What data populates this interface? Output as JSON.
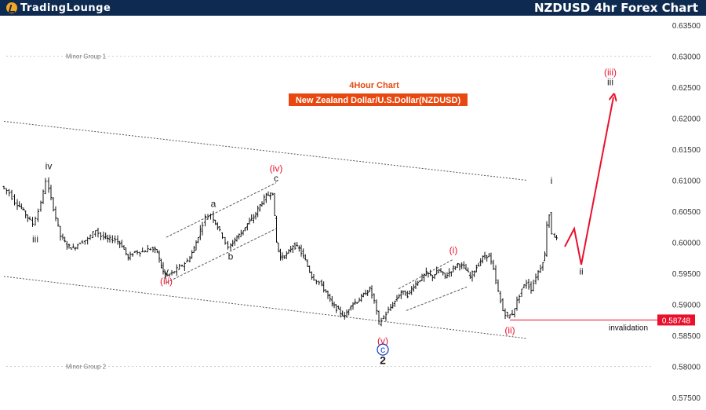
{
  "header": {
    "logo_text": "TradingLounge",
    "logo_icon": "trading-lounge-logo-icon",
    "title": "NZDUSD 4hr Forex Chart"
  },
  "colors": {
    "header_bg": "#0f2a50",
    "logo_accent": "#f5a623",
    "wave_red": "#e8112d",
    "wave_black": "#1a1a1a",
    "wave_blue": "#1e3fc7",
    "label_bg": "#e8480f",
    "candles": "#111111",
    "channel": "#777777"
  },
  "chart_data": {
    "type": "candlestick",
    "title": "4Hour Chart",
    "subtitle": "New Zealand Dollar/U.S.Dollar(NZDUSD)",
    "ylim": [
      0.5745,
      0.6365
    ],
    "yticks": [
      "0.57500",
      "0.58000",
      "0.58500",
      "0.59000",
      "0.59500",
      "0.60000",
      "0.60500",
      "0.61000",
      "0.61500",
      "0.62000",
      "0.62500",
      "0.63000",
      "0.63500"
    ],
    "grid": false,
    "group_labels": [
      {
        "text": "Minor Group 1",
        "y": 0.63
      },
      {
        "text": "Minor Group 2",
        "y": 0.58
      }
    ],
    "invalidation": {
      "label": "invalidation",
      "value": "0.58748",
      "y": 0.58748
    },
    "wave_labels": [
      {
        "text": "iv",
        "x": 62,
        "y": 0.6118,
        "color": "black"
      },
      {
        "text": "iii",
        "x": 45,
        "y": 0.6,
        "color": "black"
      },
      {
        "text": "(iv)",
        "x": 352,
        "y": 0.6114,
        "color": "red"
      },
      {
        "text": "c",
        "x": 352,
        "y": 0.6098,
        "color": "black"
      },
      {
        "text": "a",
        "x": 272,
        "y": 0.6057,
        "color": "black"
      },
      {
        "text": "b",
        "x": 294,
        "y": 0.5972,
        "color": "black"
      },
      {
        "text": "v",
        "x": 212,
        "y": 0.5948,
        "color": "black"
      },
      {
        "text": "(iii)",
        "x": 212,
        "y": 0.5932,
        "color": "red"
      },
      {
        "text": "(i)",
        "x": 578,
        "y": 0.5982,
        "color": "red"
      },
      {
        "text": "i",
        "x": 703,
        "y": 0.6094,
        "color": "black"
      },
      {
        "text": "ii",
        "x": 741,
        "y": 0.5948,
        "color": "black"
      },
      {
        "text": "(ii)",
        "x": 650,
        "y": 0.5853,
        "color": "red"
      },
      {
        "text": "(v)",
        "x": 488,
        "y": 0.5836,
        "color": "red"
      },
      {
        "text": "c",
        "x": 488,
        "y": 0.5822,
        "color": "blue"
      },
      {
        "text": "2",
        "x": 488,
        "y": 0.5804,
        "color": "black"
      },
      {
        "text": "(iii)",
        "x": 778,
        "y": 0.6269,
        "color": "red"
      },
      {
        "text": "iii",
        "x": 778,
        "y": 0.6253,
        "color": "black"
      }
    ],
    "projection": [
      [
        720,
        0.5993
      ],
      [
        732,
        0.6022
      ],
      [
        741,
        0.5964
      ],
      [
        782,
        0.6234
      ]
    ],
    "channels": [
      {
        "from": [
          5,
          0.6195
        ],
        "to": [
          672,
          0.61
        ]
      },
      {
        "from": [
          5,
          0.5945
        ],
        "to": [
          672,
          0.5845
        ]
      },
      {
        "from": [
          212,
          0.6008
        ],
        "to": [
          352,
          0.6096
        ]
      },
      {
        "from": [
          212,
          0.5935
        ],
        "to": [
          352,
          0.6022
        ]
      },
      {
        "from": [
          508,
          0.5925
        ],
        "to": [
          577,
          0.5972
        ]
      },
      {
        "from": [
          518,
          0.589
        ],
        "to": [
          595,
          0.5928
        ]
      }
    ],
    "price_path": [
      [
        5,
        0.609
      ],
      [
        15,
        0.608
      ],
      [
        22,
        0.6065
      ],
      [
        30,
        0.6055
      ],
      [
        38,
        0.604
      ],
      [
        45,
        0.603
      ],
      [
        52,
        0.605
      ],
      [
        58,
        0.608
      ],
      [
        62,
        0.61
      ],
      [
        68,
        0.607
      ],
      [
        74,
        0.604
      ],
      [
        80,
        0.601
      ],
      [
        88,
        0.5995
      ],
      [
        96,
        0.599
      ],
      [
        105,
        0.6
      ],
      [
        115,
        0.6005
      ],
      [
        125,
        0.602
      ],
      [
        132,
        0.601
      ],
      [
        140,
        0.6005
      ],
      [
        150,
        0.6005
      ],
      [
        158,
        0.5995
      ],
      [
        166,
        0.5975
      ],
      [
        175,
        0.5985
      ],
      [
        185,
        0.5985
      ],
      [
        195,
        0.599
      ],
      [
        203,
        0.5985
      ],
      [
        208,
        0.596
      ],
      [
        213,
        0.5945
      ],
      [
        222,
        0.595
      ],
      [
        232,
        0.596
      ],
      [
        242,
        0.597
      ],
      [
        250,
        0.599
      ],
      [
        258,
        0.602
      ],
      [
        265,
        0.604
      ],
      [
        272,
        0.6045
      ],
      [
        280,
        0.6025
      ],
      [
        287,
        0.601
      ],
      [
        294,
        0.599
      ],
      [
        302,
        0.6005
      ],
      [
        310,
        0.6015
      ],
      [
        318,
        0.603
      ],
      [
        326,
        0.604
      ],
      [
        334,
        0.606
      ],
      [
        342,
        0.6075
      ],
      [
        350,
        0.608
      ],
      [
        355,
        0.6
      ],
      [
        360,
        0.5975
      ],
      [
        368,
        0.598
      ],
      [
        376,
        0.5995
      ],
      [
        384,
        0.599
      ],
      [
        392,
        0.597
      ],
      [
        400,
        0.5945
      ],
      [
        410,
        0.5935
      ],
      [
        418,
        0.592
      ],
      [
        426,
        0.59
      ],
      [
        434,
        0.589
      ],
      [
        442,
        0.588
      ],
      [
        450,
        0.59
      ],
      [
        458,
        0.5905
      ],
      [
        466,
        0.5915
      ],
      [
        474,
        0.5925
      ],
      [
        480,
        0.5905
      ],
      [
        486,
        0.587
      ],
      [
        492,
        0.588
      ],
      [
        498,
        0.589
      ],
      [
        506,
        0.5905
      ],
      [
        514,
        0.592
      ],
      [
        522,
        0.5915
      ],
      [
        530,
        0.593
      ],
      [
        538,
        0.594
      ],
      [
        546,
        0.595
      ],
      [
        554,
        0.5945
      ],
      [
        562,
        0.5955
      ],
      [
        570,
        0.5945
      ],
      [
        578,
        0.5955
      ],
      [
        586,
        0.5965
      ],
      [
        594,
        0.596
      ],
      [
        602,
        0.5945
      ],
      [
        610,
        0.596
      ],
      [
        618,
        0.5975
      ],
      [
        626,
        0.598
      ],
      [
        632,
        0.5955
      ],
      [
        638,
        0.592
      ],
      [
        644,
        0.589
      ],
      [
        650,
        0.588
      ],
      [
        656,
        0.5885
      ],
      [
        662,
        0.5905
      ],
      [
        668,
        0.5925
      ],
      [
        674,
        0.5935
      ],
      [
        680,
        0.5925
      ],
      [
        686,
        0.5945
      ],
      [
        692,
        0.596
      ],
      [
        697,
        0.598
      ],
      [
        700,
        0.603
      ],
      [
        703,
        0.6045
      ],
      [
        707,
        0.6015
      ],
      [
        712,
        0.6005
      ]
    ]
  }
}
